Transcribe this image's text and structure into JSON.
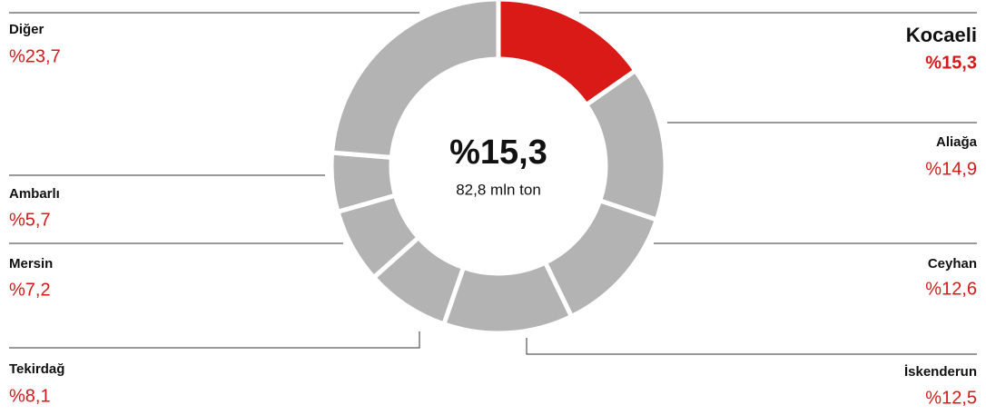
{
  "chart_data": {
    "type": "pie",
    "donut": true,
    "categories": [
      "Kocaeli",
      "Aliağa",
      "Ceyhan",
      "İskenderun",
      "Tekirdağ",
      "Mersin",
      "Ambarlı",
      "Diğer"
    ],
    "values": [
      15.3,
      14.9,
      12.6,
      12.5,
      8.1,
      7.2,
      5.7,
      23.7
    ],
    "value_labels": [
      "%15,3",
      "%14,9",
      "%12,6",
      "%12,5",
      "%8,1",
      "%7,2",
      "%5,7",
      "%23,7"
    ],
    "colors": [
      "#da1a17",
      "#b3b3b3",
      "#b3b3b3",
      "#b3b3b3",
      "#b3b3b3",
      "#b3b3b3",
      "#b3b3b3",
      "#b3b3b3"
    ],
    "center_title": "%15,3",
    "center_subtitle": "82,8 mln ton"
  }
}
